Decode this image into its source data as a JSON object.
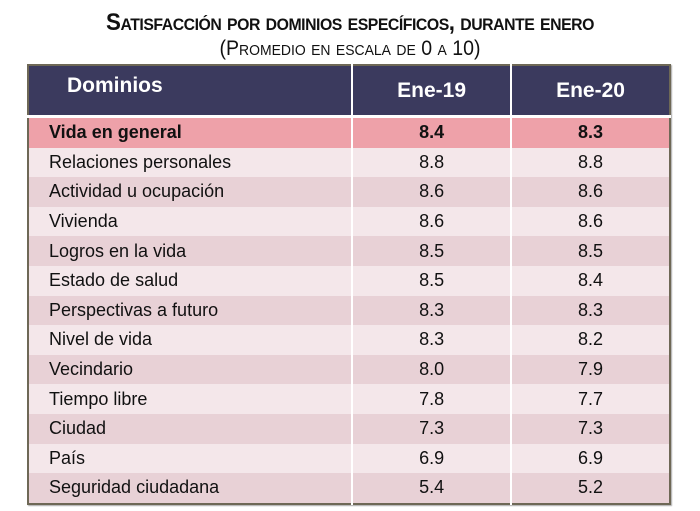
{
  "title": "Satisfacción por dominios específicos, durante enero",
  "subtitle": "(Promedio en escala de 0 a 10)",
  "table": {
    "headers": [
      "Dominios",
      "Ene-19",
      "Ene-20"
    ],
    "rows": [
      {
        "domain": "Vida en general",
        "ene19": "8.4",
        "ene20": "8.3"
      },
      {
        "domain": "Relaciones personales",
        "ene19": "8.8",
        "ene20": "8.8"
      },
      {
        "domain": "Actividad u ocupación",
        "ene19": "8.6",
        "ene20": "8.6"
      },
      {
        "domain": "Vivienda",
        "ene19": "8.6",
        "ene20": "8.6"
      },
      {
        "domain": "Logros en la vida",
        "ene19": "8.5",
        "ene20": "8.5"
      },
      {
        "domain": "Estado de salud",
        "ene19": "8.5",
        "ene20": "8.4"
      },
      {
        "domain": "Perspectivas a futuro",
        "ene19": "8.3",
        "ene20": "8.3"
      },
      {
        "domain": "Nivel de vida",
        "ene19": "8.3",
        "ene20": "8.2"
      },
      {
        "domain": "Vecindario",
        "ene19": "8.0",
        "ene20": "7.9"
      },
      {
        "domain": "Tiempo libre",
        "ene19": "7.8",
        "ene20": "7.7"
      },
      {
        "domain": "Ciudad",
        "ene19": "7.3",
        "ene20": "7.3"
      },
      {
        "domain": "País",
        "ene19": "6.9",
        "ene20": "6.9"
      },
      {
        "domain": "Seguridad ciudadana",
        "ene19": "5.4",
        "ene20": "5.2"
      }
    ]
  },
  "colors": {
    "header": "#3b3a5e",
    "highlight": "#eea1a9",
    "row_light": "#f4e7ea",
    "row_dark": "#e8d1d6"
  }
}
